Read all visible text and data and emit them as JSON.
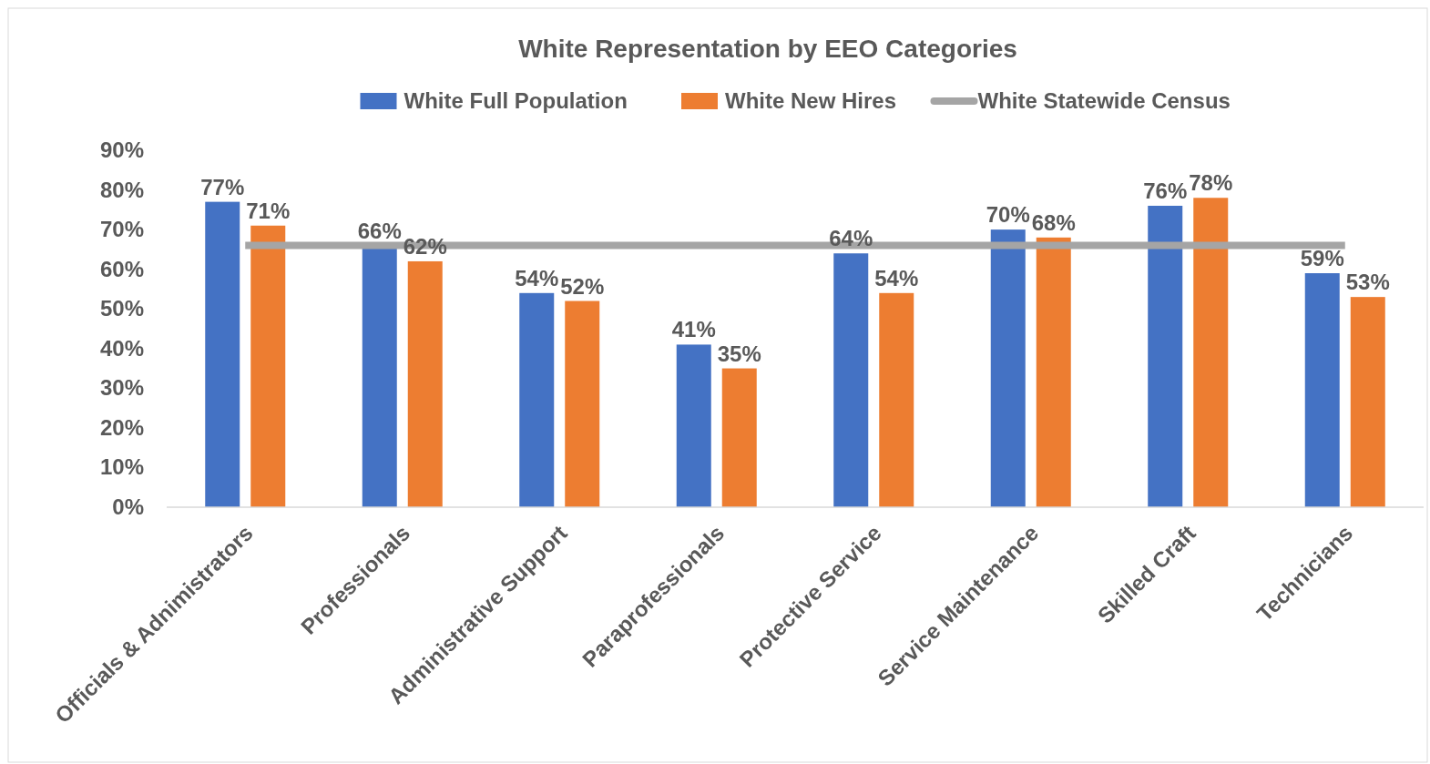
{
  "chart_data": {
    "type": "bar",
    "title": "White Representation by EEO Categories",
    "categories": [
      "Officials & Adnimistrators",
      "Professionals",
      "Administrative Support",
      "Paraprofessionals",
      "Protective Service",
      "Service Maintenance",
      "Skilled Craft",
      "Technicians"
    ],
    "series": [
      {
        "name": "White Full Population",
        "color": "#4472c4",
        "values": [
          77,
          66,
          54,
          41,
          64,
          70,
          76,
          59
        ],
        "value_labels": [
          "77%",
          "66%",
          "54%",
          "41%",
          "64%",
          "70%",
          "76%",
          "59%"
        ]
      },
      {
        "name": "White New Hires",
        "color": "#ed7d31",
        "values": [
          71,
          62,
          52,
          35,
          54,
          68,
          78,
          53
        ],
        "value_labels": [
          "71%",
          "62%",
          "52%",
          "35%",
          "54%",
          "68%",
          "78%",
          "53%"
        ]
      },
      {
        "name": "White Statewide Census",
        "type": "line",
        "color": "#a5a5a5",
        "values": [
          66,
          66,
          66,
          66,
          66,
          66,
          66,
          66
        ]
      }
    ],
    "ylim": [
      0,
      90
    ],
    "yticks": [
      {
        "value": 0,
        "label": "0%"
      },
      {
        "value": 10,
        "label": "10%"
      },
      {
        "value": 20,
        "label": "20%"
      },
      {
        "value": 30,
        "label": "30%"
      },
      {
        "value": 40,
        "label": "40%"
      },
      {
        "value": 50,
        "label": "50%"
      },
      {
        "value": 60,
        "label": "60%"
      },
      {
        "value": 70,
        "label": "70%"
      },
      {
        "value": 80,
        "label": "80%"
      },
      {
        "value": 90,
        "label": "90%"
      }
    ],
    "grid": false,
    "legend": "top"
  }
}
